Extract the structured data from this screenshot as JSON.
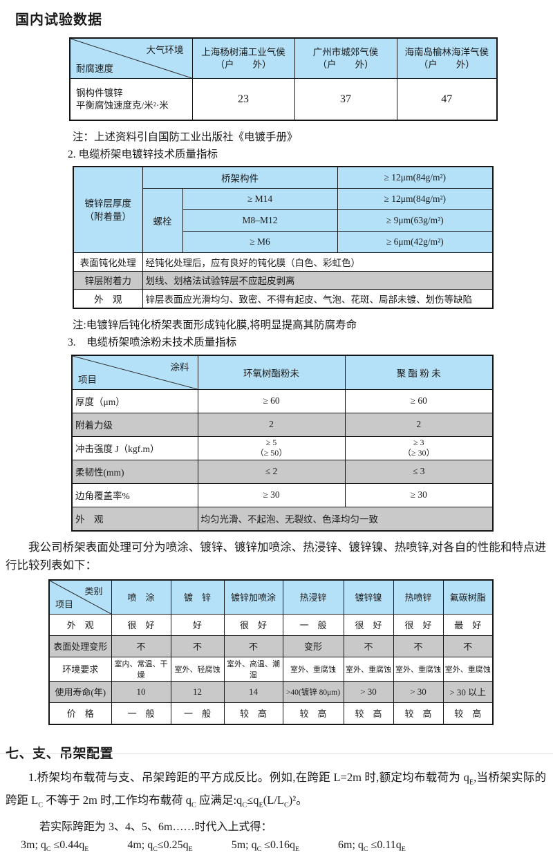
{
  "colors": {
    "header_blue": "#b5e1f8",
    "row_gray": "#c9c9c9"
  },
  "title": "国内试验数据",
  "table1": {
    "corner_top": "大气环境",
    "corner_bottom": "耐腐速度",
    "columns": [
      {
        "name": "上海杨树浦工业气侯",
        "sub": "（户　　外）"
      },
      {
        "name": "广州市城郊气侯",
        "sub": "（户　　外）"
      },
      {
        "name": "海南岛榆林海洋气侯",
        "sub": "（户　　外）"
      }
    ],
    "row_label_1": "钢构件镀锌",
    "row_label_2": "平衡腐蚀速度克/米²·米",
    "values": [
      "23",
      "37",
      "47"
    ]
  },
  "note1": "注：上述资料引自国防工业出版社《电镀手册》",
  "section2_title": "2. 电缆桥架电镀锌技术质量指标",
  "table2": {
    "thickness_label_1": "镀锌层厚度",
    "thickness_label_2": "（附着量）",
    "bridge_part": "桥架构件",
    "bridge_value": "≥ 12μm(84g/m²)",
    "bolt_label": "螺栓",
    "bolt_rows": [
      {
        "spec": "≥ M14",
        "value": "≥ 12μm(84g/m²)"
      },
      {
        "spec": "M8–M12",
        "value": "≥ 9μm(63g/m²)"
      },
      {
        "spec": "≥ M6",
        "value": "≥ 6μm(42g/m²)"
      }
    ],
    "passivation_label": "表面钝化处理",
    "passivation_value": "经钝化处理后，应有良好的钝化膜（白色、彩虹色）",
    "adhesion_label": "锌层附着力",
    "adhesion_value": "划线、划格法试验锌层不应起皮剥离",
    "appearance_label": "外　观",
    "appearance_value": "锌层表面应光滑均匀、致密、不得有起皮、气泡、花斑、局部未镀、划伤等缺陷"
  },
  "note2": "注:电镀锌后钝化桥架表面形成钝化膜,将明显提高其防腐寿命",
  "section3_title": "3.　电缆桥架喷涂粉未技术质量指标",
  "table3": {
    "corner_top": "涂料",
    "corner_bottom": "项目",
    "col1": "环氧树酯粉未",
    "col2": "聚 酯 粉 未",
    "row_thickness": {
      "label": "厚度（μm）",
      "v1": "≥ 60",
      "v2": "≥ 60"
    },
    "row_adhesion": {
      "label": "附着力级",
      "v1": "2",
      "v2": "2"
    },
    "row_impact": {
      "label": "冲击强度 J（kgf.m）",
      "v1a": "≥ 5",
      "v1b": "（≥ 50）",
      "v2a": "≥ 3",
      "v2b": "（≥ 30）"
    },
    "row_flex": {
      "label": "柔韧性(mm)",
      "v1": "≤ 2",
      "v2": "≤ 3"
    },
    "row_edge": {
      "label": "边角覆盖率%",
      "v1": "≥ 30",
      "v2": "≥ 30"
    },
    "row_appearance": {
      "label": "外　观",
      "v": "均匀光滑、不起泡、无裂纹、色泽均匀一致"
    }
  },
  "compare_intro": "我公司桥架表面处理可分为喷涂、镀锌、镀锌加喷涂、热浸锌、镀锌镍、热喷锌,对各自的性能和特点进行比较列表如下：",
  "table4": {
    "corner_top": "类别",
    "corner_bottom": "项目",
    "columns": [
      "喷　涂",
      "镀　锌",
      "镀锌加喷涂",
      "热浸锌",
      "镀锌镍",
      "热喷锌",
      "氟碳树脂"
    ],
    "rows": [
      {
        "label": "外　观",
        "cells": [
          "很　好",
          "好",
          "很　好",
          "一　般",
          "很　好",
          "很　好",
          "最　好"
        ]
      },
      {
        "label": "表面处理变形",
        "cells": [
          "不",
          "不",
          "不",
          "变形",
          "不",
          "不",
          "不"
        ]
      },
      {
        "label": "环境要求",
        "cells": [
          "室内、常温、干燥",
          "室外、轻腐蚀",
          "室外、高温、潮湿",
          "室外、重腐蚀",
          "室外、重腐蚀",
          "室外、重腐蚀",
          "室外、重腐蚀"
        ]
      },
      {
        "label": "使用寿命(年)",
        "cells": [
          "10",
          "12",
          "14",
          ">40(镀锌 80μm)",
          "> 30",
          "> 30",
          "> 30 以上"
        ]
      },
      {
        "label": "价　格",
        "cells": [
          "一　般",
          "一　般",
          "较　高",
          "较　高",
          "较　高",
          "较　高",
          "较　高"
        ]
      }
    ]
  },
  "section7": {
    "title": "七、支、吊架配置",
    "para1_segments": [
      {
        "t": "1.桥架均布载荷与支、吊架跨距的平方成反比。例如,在跨距 L=2m 时,额定均布载荷为 q"
      },
      {
        "sub": "E"
      },
      {
        "t": ",当桥架实际的跨距 L"
      },
      {
        "sub": "C"
      },
      {
        "t": " 不等于 2m 时,工作均布载荷 q"
      },
      {
        "sub": "C"
      },
      {
        "t": " 应满足:q"
      },
      {
        "sub": "C"
      },
      {
        "t": "≤q"
      },
      {
        "sub": "E"
      },
      {
        "t": "(L/L"
      },
      {
        "sub": "C"
      },
      {
        "t": ")²。"
      }
    ],
    "para2": "若实际跨距为 3、4、5、6m……时代入上式得：",
    "formulas": [
      [
        {
          "t": "3m; q"
        },
        {
          "sub": "C"
        },
        {
          "t": " ≤0.44q"
        },
        {
          "sub": "E"
        }
      ],
      [
        {
          "t": "4m; q"
        },
        {
          "sub": "C"
        },
        {
          "t": "≤0.25q"
        },
        {
          "sub": "E"
        }
      ],
      [
        {
          "t": "5m; q"
        },
        {
          "sub": "C"
        },
        {
          "t": " ≤0.16q"
        },
        {
          "sub": "E"
        }
      ],
      [
        {
          "t": "6m; q"
        },
        {
          "sub": "C"
        },
        {
          "t": " ≤0.11q"
        },
        {
          "sub": "E"
        }
      ]
    ]
  }
}
